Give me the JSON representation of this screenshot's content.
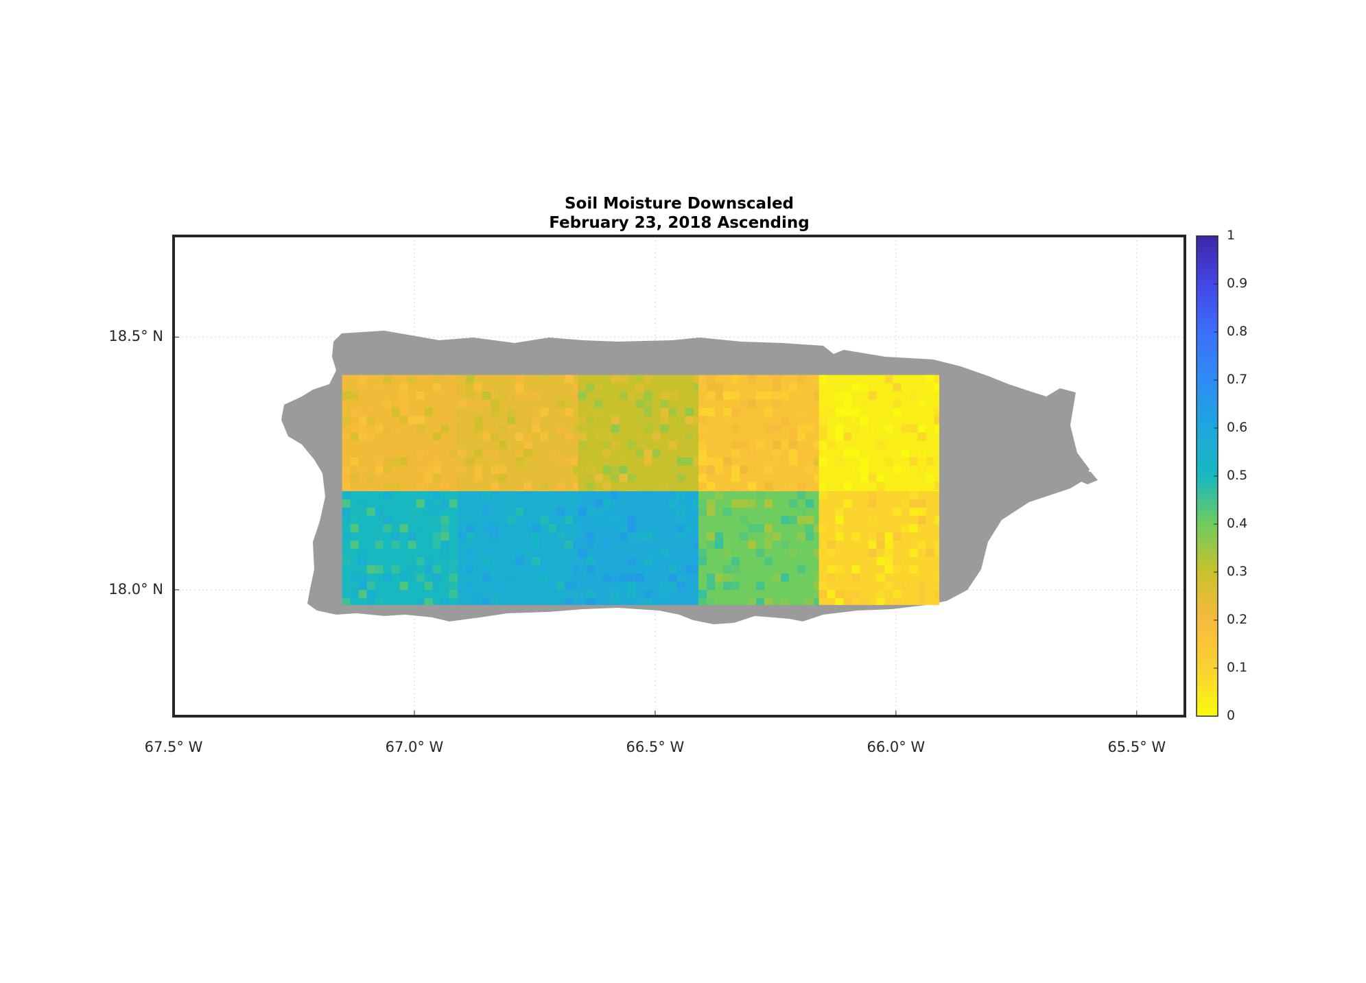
{
  "title": {
    "line1": "Soil Moisture Downscaled",
    "line2": "February 23, 2018 Ascending"
  },
  "map": {
    "lon_range": [
      -67.5,
      -65.4
    ],
    "lat_range": [
      17.75,
      18.7
    ],
    "lat_ticks": [
      {
        "value": 18.5,
        "label": "18.5° N"
      },
      {
        "value": 18.0,
        "label": "18.0° N"
      }
    ],
    "lon_ticks": [
      {
        "value": -67.5,
        "label": "67.5° W"
      },
      {
        "value": -67.0,
        "label": "67.0° W"
      },
      {
        "value": -66.5,
        "label": "66.5° W"
      },
      {
        "value": -66.0,
        "label": "66.0° W"
      },
      {
        "value": -65.5,
        "label": "65.5° W"
      }
    ],
    "grid": true,
    "land_color": "#9b9b9b",
    "frame_color": "#262626",
    "tiles": [
      {
        "name": "tile-nw-a",
        "lon": [
          -67.15,
          -66.91
        ],
        "lat": [
          18.195,
          18.425
        ],
        "value": 0.22
      },
      {
        "name": "tile-n-b",
        "lon": [
          -66.91,
          -66.66
        ],
        "lat": [
          18.195,
          18.425
        ],
        "value": 0.24
      },
      {
        "name": "tile-n-c",
        "lon": [
          -66.66,
          -66.41
        ],
        "lat": [
          18.195,
          18.425
        ],
        "value": 0.3
      },
      {
        "name": "tile-ne-d",
        "lon": [
          -66.41,
          -66.16
        ],
        "lat": [
          18.195,
          18.425
        ],
        "value": 0.16
      },
      {
        "name": "tile-ne-e",
        "lon": [
          -66.16,
          -65.91
        ],
        "lat": [
          18.195,
          18.425
        ],
        "value": 0.03
      },
      {
        "name": "tile-sw-a",
        "lon": [
          -67.15,
          -66.91
        ],
        "lat": [
          17.97,
          18.195
        ],
        "value": 0.5
      },
      {
        "name": "tile-s-b",
        "lon": [
          -66.91,
          -66.66
        ],
        "lat": [
          17.97,
          18.195
        ],
        "value": 0.56
      },
      {
        "name": "tile-s-c",
        "lon": [
          -66.66,
          -66.41
        ],
        "lat": [
          17.97,
          18.195
        ],
        "value": 0.58
      },
      {
        "name": "tile-se-d",
        "lon": [
          -66.41,
          -66.16
        ],
        "lat": [
          17.97,
          18.195
        ],
        "value": 0.4
      },
      {
        "name": "tile-se-e",
        "lon": [
          -66.16,
          -65.91
        ],
        "lat": [
          17.97,
          18.195
        ],
        "value": 0.09
      }
    ]
  },
  "colorbar": {
    "min": 0,
    "max": 1,
    "ticks": [
      {
        "value": 1,
        "label": "1"
      },
      {
        "value": 0.9,
        "label": "0.9"
      },
      {
        "value": 0.8,
        "label": "0.8"
      },
      {
        "value": 0.7,
        "label": "0.7"
      },
      {
        "value": 0.6,
        "label": "0.6"
      },
      {
        "value": 0.5,
        "label": "0.5"
      },
      {
        "value": 0.4,
        "label": "0.4"
      },
      {
        "value": 0.3,
        "label": "0.3"
      },
      {
        "value": 0.2,
        "label": "0.2"
      },
      {
        "value": 0.1,
        "label": "0.1"
      },
      {
        "value": 0,
        "label": "0"
      }
    ],
    "stops": [
      {
        "v": 0.0,
        "color": "#f9fb0e"
      },
      {
        "v": 0.1,
        "color": "#fbd131"
      },
      {
        "v": 0.2,
        "color": "#f8ba3d"
      },
      {
        "v": 0.3,
        "color": "#c9c12b"
      },
      {
        "v": 0.4,
        "color": "#6fcc5e"
      },
      {
        "v": 0.5,
        "color": "#17b8c0"
      },
      {
        "v": 0.6,
        "color": "#1ea7dd"
      },
      {
        "v": 0.7,
        "color": "#2d8cf4"
      },
      {
        "v": 0.8,
        "color": "#3b6ffb"
      },
      {
        "v": 0.9,
        "color": "#4346e6"
      },
      {
        "v": 1.0,
        "color": "#3e26a8"
      }
    ]
  }
}
